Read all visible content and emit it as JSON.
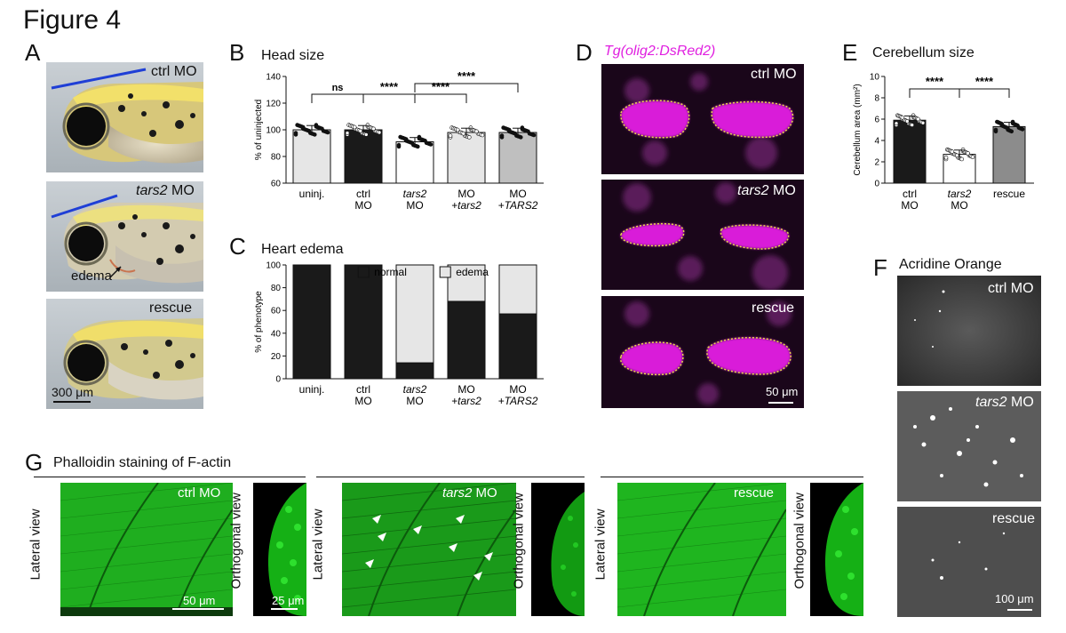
{
  "figure_title": "Figure 4",
  "panel_letters": {
    "A": "A",
    "B": "B",
    "C": "C",
    "D": "D",
    "E": "E",
    "F": "F",
    "G": "G"
  },
  "panel_a": {
    "labels": [
      "ctrl MO",
      "tars2",
      " MO",
      "rescue"
    ],
    "edema": "edema",
    "scale": "300 μm"
  },
  "panel_d": {
    "title": "Tg(olig2:DsRed2)",
    "labels": [
      "ctrl MO",
      "tars2",
      " MO",
      "rescue"
    ],
    "scale": "50 μm"
  },
  "panel_f": {
    "title": "Acridine Orange",
    "labels": [
      "ctrl MO",
      "tars2",
      " MO",
      "rescue"
    ],
    "scale": "100 μm"
  },
  "panel_g": {
    "title": "Phalloidin staining of F-actin",
    "labels": [
      "ctrl MO",
      "tars2",
      " MO",
      "rescue"
    ],
    "lateral": "Lateral view",
    "orthogonal": "Orthogonal view",
    "scale_lateral": "50 μm",
    "scale_ortho": "25 μm"
  },
  "chart_data": [
    {
      "id": "B",
      "type": "bar",
      "title": "Head size",
      "ylabel": "% of uninjected",
      "ylim": [
        60,
        140
      ],
      "yticks": [
        60,
        80,
        100,
        120,
        140
      ],
      "categories": [
        "uninj.",
        "ctrl MO",
        "tars2 MO",
        "MO +tars2",
        "MO +TARS2"
      ],
      "values": [
        100,
        100,
        91,
        98,
        98
      ],
      "bar_colors": [
        "#e6e6e6",
        "#1a1a1a",
        "#ffffff",
        "#e6e6e6",
        "#bfbfbf"
      ],
      "significance": [
        {
          "from": "uninj.",
          "to": "ctrl MO",
          "label": "ns"
        },
        {
          "from": "ctrl MO",
          "to": "tars2 MO",
          "label": "****"
        },
        {
          "from": "tars2 MO",
          "to": "MO +tars2",
          "label": "****"
        },
        {
          "from": "tars2 MO",
          "to": "MO +TARS2",
          "label": "****"
        }
      ]
    },
    {
      "id": "C",
      "type": "bar",
      "stacked": true,
      "title": "Heart edema",
      "ylabel": "% of phenotype",
      "ylim": [
        0,
        100
      ],
      "yticks": [
        0,
        20,
        40,
        60,
        80,
        100
      ],
      "categories": [
        "uninj.",
        "ctrl MO",
        "tars2 MO",
        "MO +tars2",
        "MO +TARS2"
      ],
      "series": [
        {
          "name": "normal",
          "values": [
            100,
            100,
            14,
            68,
            57
          ],
          "color": "#1a1a1a"
        },
        {
          "name": "edema",
          "values": [
            0,
            0,
            86,
            32,
            43
          ],
          "color": "#e6e6e6"
        }
      ],
      "legend": "top"
    },
    {
      "id": "E",
      "type": "bar",
      "title": "Cerebellum size",
      "ylabel": "Cerebellum area (mm²)",
      "ylim": [
        0,
        10
      ],
      "yticks": [
        0,
        2,
        4,
        6,
        8,
        10
      ],
      "categories": [
        "ctrl MO",
        "tars2 MO",
        "rescue"
      ],
      "values": [
        5.9,
        2.7,
        5.3
      ],
      "bar_colors": [
        "#1a1a1a",
        "#ffffff",
        "#8c8c8c"
      ],
      "significance": [
        {
          "from": "ctrl MO",
          "to": "tars2 MO",
          "label": "****"
        },
        {
          "from": "tars2 MO",
          "to": "rescue",
          "label": "****"
        }
      ]
    }
  ]
}
